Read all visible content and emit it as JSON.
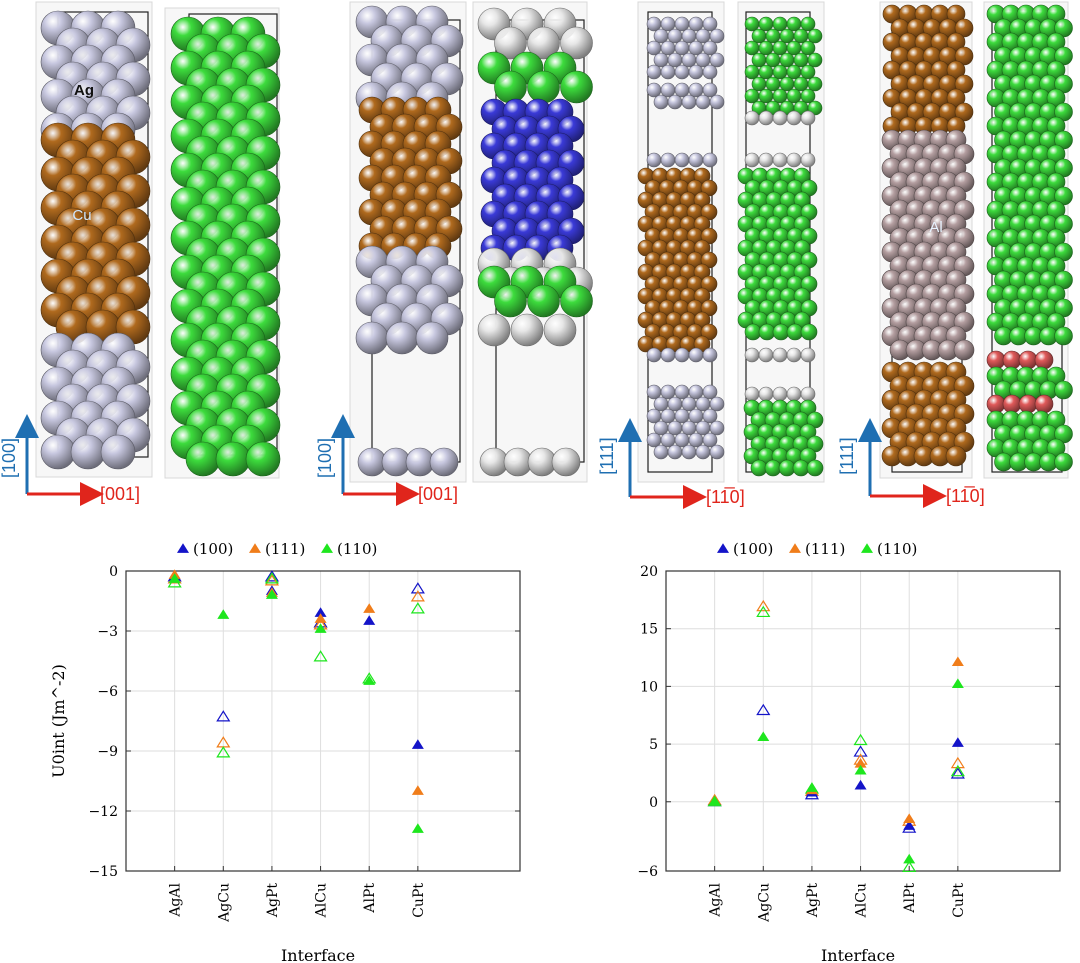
{
  "structures": {
    "panels": [
      {
        "id": "a",
        "x_axis": "[001]",
        "y_axis": "[100]",
        "labels": [
          "Ag",
          "Cu"
        ]
      },
      {
        "id": "b",
        "x_axis": "[001]",
        "y_axis": "[100]",
        "labels": []
      },
      {
        "id": "c",
        "x_axis": "[11̅0]",
        "y_axis": "[111]",
        "labels": []
      },
      {
        "id": "d",
        "x_axis": "[11̅0]",
        "y_axis": "[111]",
        "labels": [
          "Al"
        ]
      }
    ],
    "colors": {
      "ag": "#c8c8e0",
      "cu": "#b06a1e",
      "al": "#b49ea0",
      "pt_blue": "#3a3ad8",
      "green": "#3ddc3d",
      "white": "#e6e6e6",
      "red": "#e05a5a",
      "axis_blue": "#1f6fb2",
      "axis_red": "#e0251c"
    }
  },
  "legend": [
    {
      "label": "(100)",
      "color": "#1414c8"
    },
    {
      "label": "(111)",
      "color": "#f07d1a"
    },
    {
      "label": "(110)",
      "color": "#1ee61e"
    }
  ],
  "chart_data": [
    {
      "type": "scatter",
      "categories": [
        "AgAl",
        "AgCu",
        "AgPt",
        "AlCu",
        "AlPt",
        "CuPt"
      ],
      "xlabel": "Interface",
      "ylabel": "U0int (Jm^-2)",
      "ylim": [
        -15,
        0
      ],
      "yticks": [
        0,
        -3,
        -6,
        -9,
        -12,
        -15
      ],
      "ytick_labels": [
        "0",
        "−3",
        "−6",
        "−9",
        "−12",
        "−15"
      ],
      "grid": true,
      "series": [
        {
          "name": "(100)",
          "filled": true,
          "values": [
            -0.3,
            null,
            -1.0,
            -2.1,
            -2.5,
            -8.7
          ]
        },
        {
          "name": "(111)",
          "filled": true,
          "values": [
            -0.2,
            null,
            -1.1,
            -2.4,
            -1.9,
            -11.0
          ]
        },
        {
          "name": "(110)",
          "filled": true,
          "values": [
            -0.4,
            -2.2,
            -1.2,
            -2.9,
            -5.5,
            -12.9
          ]
        },
        {
          "name": "(100)",
          "filled": false,
          "values": [
            -0.3,
            -7.3,
            -0.3,
            -2.6,
            null,
            -0.9
          ]
        },
        {
          "name": "(111)",
          "filled": false,
          "values": [
            -0.4,
            -8.6,
            -0.5,
            -2.7,
            null,
            -1.3
          ]
        },
        {
          "name": "(110)",
          "filled": false,
          "values": [
            -0.6,
            -9.1,
            -0.4,
            -4.3,
            -5.4,
            -1.9
          ]
        }
      ]
    },
    {
      "type": "scatter",
      "categories": [
        "AgAl",
        "AgCu",
        "AgPt",
        "AlCu",
        "AlPt",
        "CuPt"
      ],
      "xlabel": "Interface",
      "ylabel": "",
      "ylim": [
        -6,
        20
      ],
      "yticks": [
        20,
        15,
        10,
        5,
        0,
        -6
      ],
      "ytick_labels": [
        "20",
        "15",
        "10",
        "5",
        "0",
        "−6"
      ],
      "grid": true,
      "series": [
        {
          "name": "(100)",
          "filled": true,
          "values": [
            0.1,
            null,
            0.8,
            1.4,
            -2.1,
            5.1
          ]
        },
        {
          "name": "(111)",
          "filled": true,
          "values": [
            0.15,
            null,
            1.0,
            3.3,
            -1.5,
            12.1
          ]
        },
        {
          "name": "(110)",
          "filled": true,
          "values": [
            0.05,
            5.6,
            1.2,
            2.7,
            -5.0,
            10.2
          ]
        },
        {
          "name": "(100)",
          "filled": false,
          "values": [
            0.0,
            7.9,
            0.6,
            4.3,
            -2.3,
            2.4
          ]
        },
        {
          "name": "(111)",
          "filled": false,
          "values": [
            0.1,
            16.9,
            0.9,
            3.6,
            -1.7,
            3.3
          ]
        },
        {
          "name": "(110)",
          "filled": false,
          "values": [
            0.0,
            16.4,
            1.1,
            5.3,
            -5.7,
            2.6
          ]
        }
      ]
    }
  ]
}
